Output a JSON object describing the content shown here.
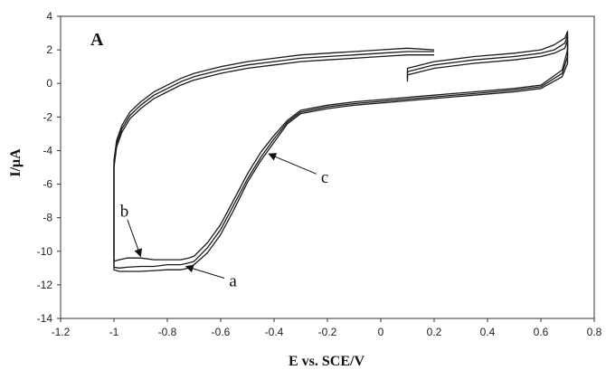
{
  "chart_data": {
    "type": "line",
    "panel_label": "A",
    "xlabel": "E vs. SCE/V",
    "ylabel": "I/μA",
    "xlim": [
      -1.2,
      0.8
    ],
    "ylim": [
      -14,
      4
    ],
    "xticks": [
      "-1.2",
      "-1",
      "-0.8",
      "-0.6",
      "-0.4",
      "-0.2",
      "0",
      "0.2",
      "0.4",
      "0.6",
      "0.8"
    ],
    "yticks": [
      "4",
      "2",
      "0",
      "-2",
      "-4",
      "-6",
      "-8",
      "-10",
      "-12",
      "-14"
    ],
    "grid": false,
    "series": [
      {
        "x": [
          0.1,
          0.1,
          0.2,
          0.35,
          0.5,
          0.6,
          0.65,
          0.69,
          0.7,
          0.7,
          0.68,
          0.6,
          0.5,
          0.35,
          0.2,
          0.05,
          -0.1,
          -0.2,
          -0.3,
          -0.35,
          -0.4,
          -0.45,
          -0.5,
          -0.55,
          -0.6,
          -0.65,
          -0.7,
          -0.72,
          -0.75,
          -0.8,
          -0.85,
          -0.9,
          -0.95,
          -0.98,
          -1.0,
          -1.0,
          -1.0,
          -1.0,
          -0.99,
          -0.97,
          -0.94,
          -0.9,
          -0.85,
          -0.8,
          -0.75,
          -0.7,
          -0.6,
          -0.5,
          -0.4,
          -0.3,
          -0.2,
          -0.1,
          0.0,
          0.1,
          0.2
        ],
        "y": [
          0.1,
          0.5,
          0.9,
          1.2,
          1.4,
          1.6,
          1.8,
          2.1,
          2.6,
          1.2,
          0.4,
          -0.3,
          -0.5,
          -0.7,
          -0.9,
          -1.1,
          -1.3,
          -1.5,
          -1.8,
          -2.4,
          -3.5,
          -4.6,
          -5.9,
          -7.5,
          -9.0,
          -10.1,
          -10.8,
          -11.0,
          -11.1,
          -11.1,
          -11.15,
          -11.2,
          -11.2,
          -11.2,
          -11.1,
          -9.5,
          -7.0,
          -5.0,
          -3.8,
          -2.9,
          -2.1,
          -1.5,
          -0.9,
          -0.5,
          -0.1,
          0.2,
          0.6,
          0.9,
          1.1,
          1.3,
          1.4,
          1.5,
          1.6,
          1.7,
          1.7
        ]
      },
      {
        "x": [
          0.1,
          0.1,
          0.2,
          0.35,
          0.5,
          0.6,
          0.65,
          0.69,
          0.7,
          0.7,
          0.68,
          0.6,
          0.5,
          0.35,
          0.2,
          0.05,
          -0.1,
          -0.2,
          -0.3,
          -0.35,
          -0.4,
          -0.45,
          -0.5,
          -0.55,
          -0.6,
          -0.65,
          -0.7,
          -0.72,
          -0.75,
          -0.8,
          -0.85,
          -0.9,
          -0.95,
          -0.98,
          -1.0,
          -1.0,
          -1.0,
          -1.0,
          -0.99,
          -0.97,
          -0.94,
          -0.9,
          -0.85,
          -0.8,
          -0.75,
          -0.7,
          -0.6,
          -0.5,
          -0.4,
          -0.3,
          -0.2,
          -0.1,
          0.0,
          0.1,
          0.2
        ],
        "y": [
          0.3,
          0.7,
          1.1,
          1.4,
          1.6,
          1.8,
          2.0,
          2.4,
          2.9,
          1.6,
          0.6,
          -0.2,
          -0.4,
          -0.6,
          -0.8,
          -1.0,
          -1.2,
          -1.4,
          -1.7,
          -2.3,
          -3.3,
          -4.4,
          -5.7,
          -7.2,
          -8.7,
          -9.8,
          -10.6,
          -10.7,
          -10.8,
          -10.8,
          -10.9,
          -10.9,
          -10.95,
          -11.0,
          -10.95,
          -9.3,
          -6.8,
          -4.8,
          -3.6,
          -2.7,
          -1.9,
          -1.3,
          -0.7,
          -0.3,
          0.1,
          0.4,
          0.8,
          1.1,
          1.3,
          1.5,
          1.6,
          1.7,
          1.8,
          1.9,
          1.9
        ]
      },
      {
        "x": [
          0.1,
          0.1,
          0.2,
          0.35,
          0.5,
          0.6,
          0.65,
          0.69,
          0.7,
          0.7,
          0.68,
          0.6,
          0.5,
          0.35,
          0.2,
          0.05,
          -0.1,
          -0.2,
          -0.3,
          -0.35,
          -0.4,
          -0.45,
          -0.5,
          -0.55,
          -0.6,
          -0.65,
          -0.7,
          -0.72,
          -0.75,
          -0.8,
          -0.85,
          -0.9,
          -0.95,
          -0.98,
          -1.0,
          -1.0,
          -1.0,
          -1.0,
          -0.99,
          -0.97,
          -0.94,
          -0.9,
          -0.85,
          -0.8,
          -0.75,
          -0.7,
          -0.6,
          -0.5,
          -0.4,
          -0.3,
          -0.2,
          -0.1,
          0.0,
          0.1,
          0.2
        ],
        "y": [
          0.5,
          0.9,
          1.3,
          1.6,
          1.8,
          2.0,
          2.3,
          2.7,
          3.1,
          2.0,
          0.8,
          -0.1,
          -0.3,
          -0.5,
          -0.7,
          -0.9,
          -1.1,
          -1.3,
          -1.6,
          -2.2,
          -3.1,
          -4.1,
          -5.4,
          -6.9,
          -8.4,
          -9.5,
          -10.3,
          -10.4,
          -10.5,
          -10.5,
          -10.5,
          -10.4,
          -10.4,
          -10.5,
          -10.6,
          -9.0,
          -6.6,
          -4.6,
          -3.4,
          -2.5,
          -1.7,
          -1.1,
          -0.5,
          -0.1,
          0.3,
          0.6,
          1.0,
          1.3,
          1.5,
          1.7,
          1.8,
          1.9,
          2.0,
          2.1,
          2.0
        ]
      }
    ],
    "annotations": [
      {
        "text": "b",
        "x": -0.9,
        "y": -10.3
      },
      {
        "text": "a",
        "x": -0.73,
        "y": -10.9
      },
      {
        "text": "c",
        "x": -0.42,
        "y": -4.2
      }
    ]
  }
}
